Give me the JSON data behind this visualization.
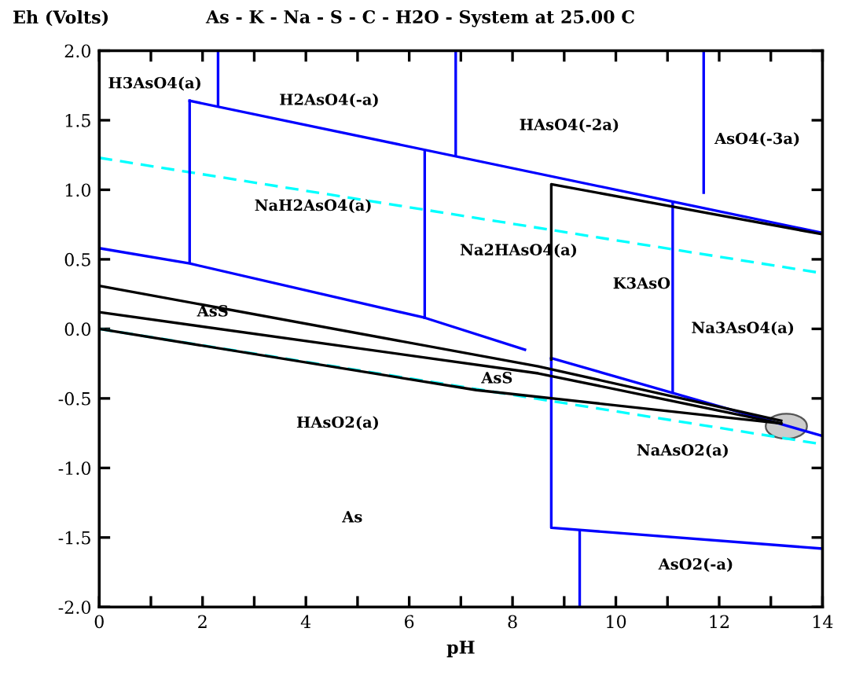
{
  "chart_data": {
    "type": "line",
    "title": "As - K - Na - S - C - H2O - System at 25.00 C",
    "xlabel": "pH",
    "ylabel": "Eh (Volts)",
    "xlim": [
      0,
      14
    ],
    "ylim": [
      -2.0,
      2.0
    ],
    "xticks": [
      0,
      {
        "value": 1,
        "label": null
      },
      2,
      {
        "value": 3,
        "label": null
      },
      4,
      {
        "value": 5,
        "label": null
      },
      6,
      {
        "value": 7,
        "label": null
      },
      8,
      {
        "value": 9,
        "label": null
      },
      10,
      {
        "value": 11,
        "label": null
      },
      12,
      {
        "value": 13,
        "label": null
      },
      14
    ],
    "yticks": [
      {
        "value": -2.0,
        "label": "-2.0"
      },
      -1.5,
      {
        "value": -1.0,
        "label": "-1.0"
      },
      -0.5,
      {
        "value": 0.0,
        "label": "0.0"
      },
      0.5,
      {
        "value": 1.0,
        "label": "1.0"
      },
      1.5,
      {
        "value": 2.0,
        "label": "2.0"
      }
    ],
    "grid": false,
    "legend": false,
    "marker": "none",
    "series": [
      {
        "color": "#00ffff",
        "line_style": "dashed",
        "x": [
          0,
          14
        ],
        "values": [
          1.23,
          0.4
        ]
      },
      {
        "color": "#00ffff",
        "line_style": "dashed",
        "x": [
          0,
          14
        ],
        "values": [
          0.0,
          -0.83
        ]
      },
      {
        "color": "#0000ff",
        "line_style": "solid",
        "x": [
          1.75,
          14
        ],
        "values": [
          1.64,
          0.69
        ]
      },
      {
        "color": "#0000ff",
        "line_style": "solid",
        "x": [
          2.3,
          2.3
        ],
        "values": [
          2.0,
          1.6
        ]
      },
      {
        "color": "#0000ff",
        "line_style": "solid",
        "x": [
          1.75,
          1.75
        ],
        "values": [
          1.64,
          0.48
        ]
      },
      {
        "color": "#0000ff",
        "line_style": "solid",
        "x": [
          6.9,
          6.9
        ],
        "values": [
          2.0,
          1.25
        ]
      },
      {
        "color": "#0000ff",
        "line_style": "solid",
        "x": [
          11.7,
          11.7
        ],
        "values": [
          2.0,
          0.98
        ]
      },
      {
        "color": "#0000ff",
        "line_style": "solid",
        "x": [
          6.3,
          6.3
        ],
        "values": [
          1.27,
          0.08
        ]
      },
      {
        "color": "#0000ff",
        "line_style": "solid",
        "x": [
          11.1,
          11.1
        ],
        "values": [
          0.9,
          -0.45
        ]
      },
      {
        "color": "#0000ff",
        "line_style": "solid",
        "x": [
          0,
          1.75,
          6.3,
          8.24
        ],
        "values": [
          0.58,
          0.47,
          0.08,
          -0.15
        ]
      },
      {
        "color": "#0000ff",
        "line_style": "solid",
        "x": [
          8.75,
          14
        ],
        "values": [
          -0.21,
          -0.77
        ]
      },
      {
        "color": "#0000ff",
        "line_style": "solid",
        "x": [
          8.75,
          8.75,
          14
        ],
        "values": [
          -0.21,
          -1.43,
          -1.58
        ]
      },
      {
        "color": "#0000ff",
        "line_style": "solid",
        "x": [
          9.3,
          9.3
        ],
        "values": [
          -1.46,
          -2.0
        ]
      },
      {
        "color": "#000000",
        "line_style": "solid",
        "x": [
          0,
          8.5,
          13.2
        ],
        "values": [
          0.31,
          -0.27,
          -0.66
        ]
      },
      {
        "color": "#000000",
        "line_style": "solid",
        "x": [
          0,
          8.5,
          13.2
        ],
        "values": [
          0.12,
          -0.32,
          -0.68
        ]
      },
      {
        "color": "#000000",
        "line_style": "solid",
        "x": [
          0,
          7.3,
          13.2
        ],
        "values": [
          0.0,
          -0.44,
          -0.68
        ]
      },
      {
        "color": "#000000",
        "line_style": "solid",
        "x": [
          8.75,
          8.75,
          14
        ],
        "values": [
          -0.22,
          1.04,
          0.68
        ]
      }
    ],
    "annotations": [
      "H3AsO4(a)",
      "H2AsO4(-a)",
      "HAsO4(-2a)",
      "AsO4(-3a)",
      "NaH2AsO4(a)",
      "Na2HAsO4(a)",
      "K3AsO",
      "Na3AsO4(a)",
      "AsS",
      "AsS",
      "HAsO2(a)",
      "NaAsO2(a)",
      "As",
      "AsO2(-a)"
    ]
  }
}
